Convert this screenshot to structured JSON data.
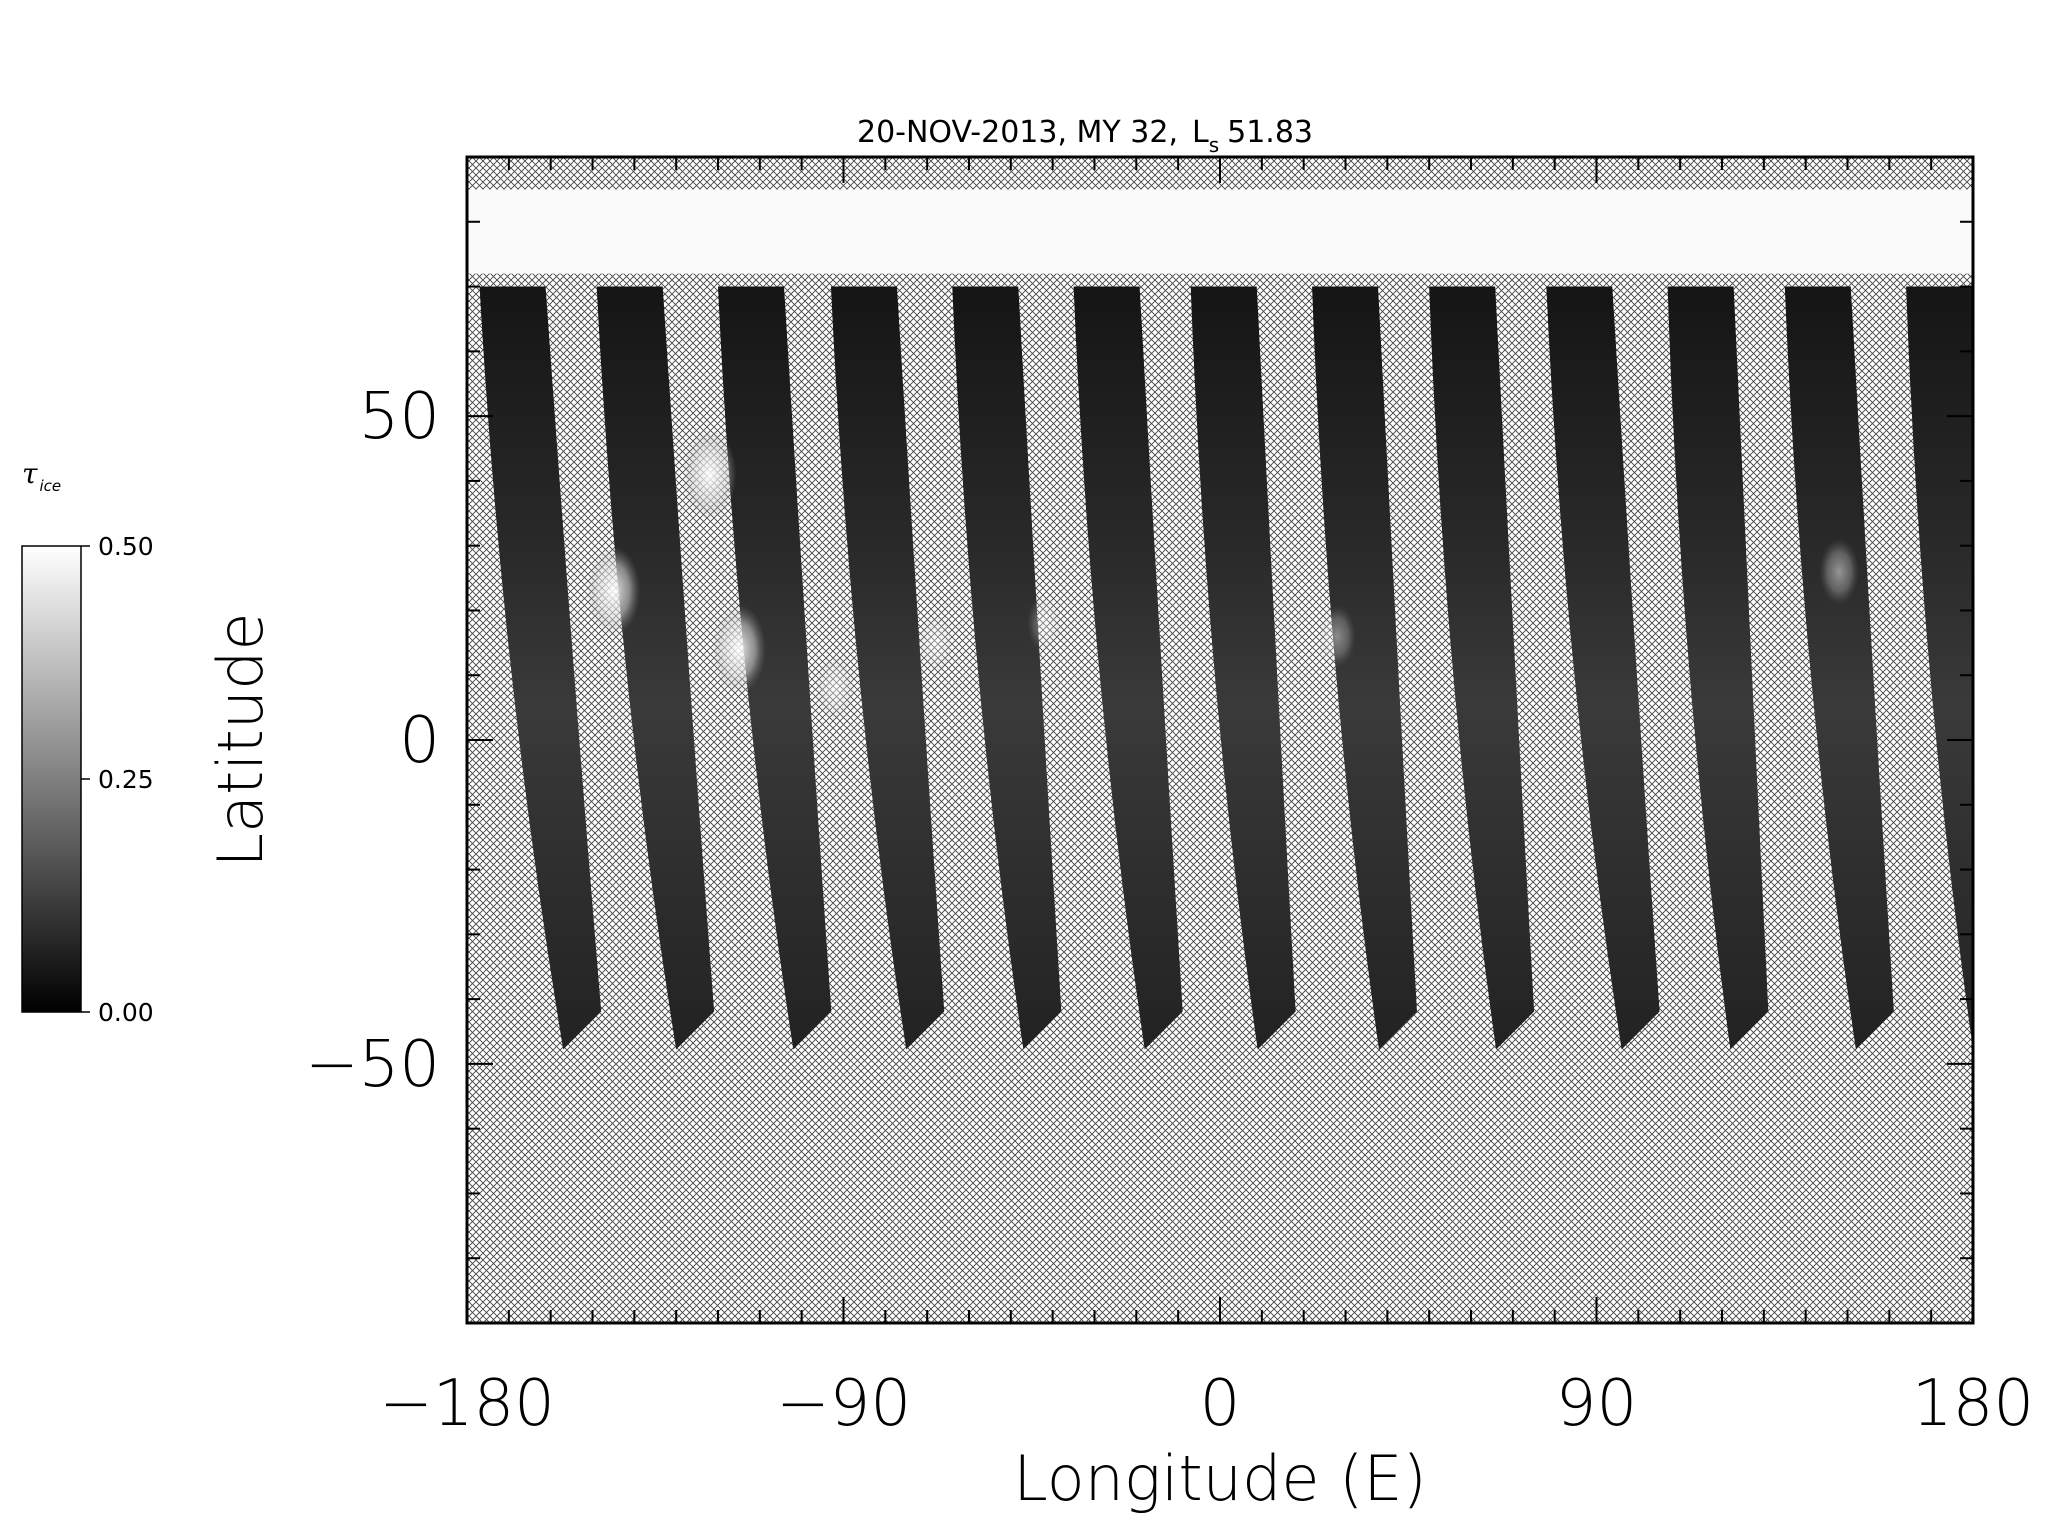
{
  "chart_data": {
    "type": "heatmap",
    "title": {
      "date": "20-NOV-2013",
      "mars_year": "MY 32",
      "ls_symbol": "L",
      "ls_subscript": "s",
      "ls_value": "51.83"
    },
    "xlabel": "Longitude (E)",
    "ylabel": "Latitude",
    "xlim": [
      -180,
      180
    ],
    "ylim": [
      -90,
      90
    ],
    "x_ticks": [
      -180,
      -90,
      0,
      90,
      180
    ],
    "x_tick_labels": [
      "−180",
      "−90",
      "0",
      "90",
      "180"
    ],
    "y_ticks": [
      50,
      0,
      -50
    ],
    "y_tick_labels": [
      "50",
      "0",
      "−50"
    ],
    "x_minor_step": 10,
    "y_minor_step": 10,
    "colorbar": {
      "label": "τ",
      "label_subscript": "ice",
      "min": 0.0,
      "max": 0.5,
      "tick_values": [
        0.0,
        0.25,
        0.5
      ],
      "tick_labels": [
        "0.00",
        "0.25",
        "0.50"
      ],
      "colormap": "grayscale"
    },
    "no_data_pattern": "crosshatch",
    "polar_cap": {
      "lat_range": [
        72,
        85
      ],
      "tau_ice": 0.5
    },
    "swath_lat_range": [
      -45,
      70
    ],
    "swaths": [
      {
        "lon_top": -177,
        "lon_bottom": -157
      },
      {
        "lon_top": -149,
        "lon_bottom": -130
      },
      {
        "lon_top": -120,
        "lon_bottom": -102
      },
      {
        "lon_top": -93,
        "lon_bottom": -75
      },
      {
        "lon_top": -64,
        "lon_bottom": -47
      },
      {
        "lon_top": -35,
        "lon_bottom": -18
      },
      {
        "lon_top": -7,
        "lon_bottom": 9
      },
      {
        "lon_top": 22,
        "lon_bottom": 38
      },
      {
        "lon_top": 50,
        "lon_bottom": 66
      },
      {
        "lon_top": 78,
        "lon_bottom": 96
      },
      {
        "lon_top": 107,
        "lon_bottom": 122
      },
      {
        "lon_top": 135,
        "lon_bottom": 152
      },
      {
        "lon_top": 164,
        "lon_bottom": 180
      }
    ],
    "cloud_patches": [
      {
        "lon": -145,
        "lat": 23,
        "tau_ice": 0.45
      },
      {
        "lon": -122,
        "lat": 41,
        "tau_ice": 0.45
      },
      {
        "lon": -115,
        "lat": 14,
        "tau_ice": 0.45
      },
      {
        "lon": -92,
        "lat": 8,
        "tau_ice": 0.25
      },
      {
        "lon": -68,
        "lat": 15,
        "tau_ice": 0.2
      },
      {
        "lon": -42,
        "lat": 18,
        "tau_ice": 0.18
      },
      {
        "lon": 28,
        "lat": 16,
        "tau_ice": 0.22
      },
      {
        "lon": 148,
        "lat": 26,
        "tau_ice": 0.25
      }
    ],
    "colors": {
      "ink": "#000000",
      "background": "#ffffff",
      "hatch": "#555555"
    }
  }
}
